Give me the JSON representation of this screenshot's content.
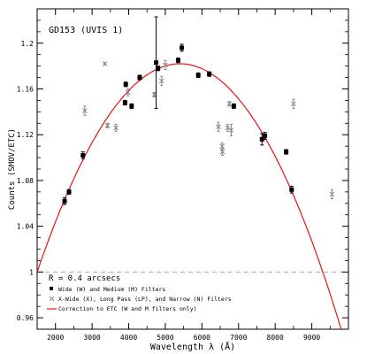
{
  "chart_data": {
    "type": "scatter",
    "title": "GD153 (UVIS 1)",
    "xlabel": "Wavelength λ (Å)",
    "ylabel": "Counts (SMOV/ETC)",
    "xlim": [
      1500,
      10000
    ],
    "ylim": [
      0.95,
      1.23
    ],
    "grid": false,
    "legend_position": "bottom-left",
    "xticks": [
      2000,
      3000,
      4000,
      5000,
      6000,
      7000,
      8000,
      9000
    ],
    "xtick_labels": [
      "2000",
      "3000",
      "4000",
      "5000",
      "6000",
      "7000",
      "8000",
      "9000"
    ],
    "yticks": [
      0.96,
      1.0,
      1.04,
      1.08,
      1.12,
      1.16,
      1.2
    ],
    "ytick_labels": [
      "0.96",
      "1",
      "1.04",
      "1.08",
      "1.12",
      "1.16",
      "1.2"
    ],
    "reference_line": {
      "y": 1.0,
      "style": "dashed",
      "color": "#aaaaaa"
    },
    "legend_header": "R = 0.4 arcsecs",
    "series": [
      {
        "name": "Wide (W) and Medium (M) Filters",
        "marker": "filled-square",
        "color": "#000000",
        "points": [
          {
            "x": 2250,
            "y": 1.062,
            "err": 0.003
          },
          {
            "x": 2370,
            "y": 1.07,
            "err": 0.002
          },
          {
            "x": 2750,
            "y": 1.102,
            "err": 0.003
          },
          {
            "x": 3900,
            "y": 1.148,
            "err": 0.002
          },
          {
            "x": 3920,
            "y": 1.164,
            "err": 0.002
          },
          {
            "x": 4080,
            "y": 1.145,
            "err": 0.002
          },
          {
            "x": 4300,
            "y": 1.17,
            "err": 0.002
          },
          {
            "x": 4750,
            "y": 1.183,
            "err": 0.04
          },
          {
            "x": 4800,
            "y": 1.178,
            "err": 0.002
          },
          {
            "x": 5350,
            "y": 1.185,
            "err": 0.002
          },
          {
            "x": 5450,
            "y": 1.196,
            "err": 0.003
          },
          {
            "x": 5900,
            "y": 1.172,
            "err": 0.002
          },
          {
            "x": 6200,
            "y": 1.173,
            "err": 0.002
          },
          {
            "x": 6870,
            "y": 1.145,
            "err": 0.002
          },
          {
            "x": 7640,
            "y": 1.116,
            "err": 0.005
          },
          {
            "x": 7720,
            "y": 1.119,
            "err": 0.003
          },
          {
            "x": 8300,
            "y": 1.105,
            "err": 0.002
          },
          {
            "x": 8450,
            "y": 1.072,
            "err": 0.003
          }
        ]
      },
      {
        "name": "X-Wide (X), Long Pass (LP), and Narrow (N) Filters",
        "marker": "cross",
        "color": "#888888",
        "points": [
          {
            "x": 2800,
            "y": 1.141,
            "err": 0.004
          },
          {
            "x": 3350,
            "y": 1.182,
            "err": 0.001
          },
          {
            "x": 3420,
            "y": 1.128,
            "err": 0.002
          },
          {
            "x": 3650,
            "y": 1.126,
            "err": 0.003
          },
          {
            "x": 3980,
            "y": 1.157,
            "err": 0.003
          },
          {
            "x": 4700,
            "y": 1.155,
            "err": 0.002
          },
          {
            "x": 4900,
            "y": 1.167,
            "err": 0.004
          },
          {
            "x": 5000,
            "y": 1.181,
            "err": 0.004
          },
          {
            "x": 6450,
            "y": 1.127,
            "err": 0.004
          },
          {
            "x": 6550,
            "y": 1.11,
            "err": 0.003
          },
          {
            "x": 6560,
            "y": 1.105,
            "err": 0.003
          },
          {
            "x": 6700,
            "y": 1.126,
            "err": 0.003
          },
          {
            "x": 6750,
            "y": 1.147,
            "err": 0.002
          },
          {
            "x": 6800,
            "y": 1.124,
            "err": 0.005
          },
          {
            "x": 8500,
            "y": 1.147,
            "err": 0.004
          },
          {
            "x": 9550,
            "y": 1.068,
            "err": 0.004
          }
        ]
      },
      {
        "name": "Correction to ETC (W and M filters only)",
        "marker": "line",
        "color": "#e8141c",
        "curve": {
          "form": "parabola",
          "peak_x": 5400,
          "peak_y": 1.182,
          "zero_offset_x": 9300,
          "zero_offset_y": 1.0
        }
      }
    ]
  }
}
